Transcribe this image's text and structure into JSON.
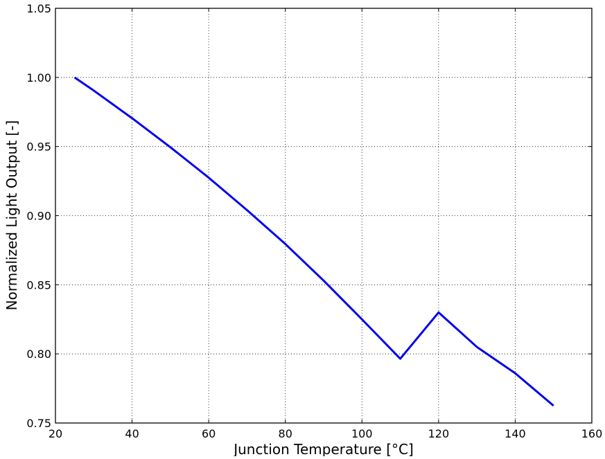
{
  "chart_data": {
    "type": "line",
    "title": "",
    "xlabel": "Junction Temperature [°C]",
    "ylabel": "Normalized Light Output [-]",
    "xlim": [
      20,
      160
    ],
    "ylim": [
      0.75,
      1.05
    ],
    "xticks": [
      20,
      40,
      60,
      80,
      100,
      120,
      140,
      160
    ],
    "xtick_labels": [
      "20",
      "40",
      "60",
      "80",
      "100",
      "120",
      "140",
      "160"
    ],
    "yticks": [
      0.75,
      0.8,
      0.85,
      0.9,
      0.95,
      1.0,
      1.05
    ],
    "ytick_labels": [
      "0.75",
      "0.80",
      "0.85",
      "0.90",
      "0.95",
      "1.00",
      "1.05"
    ],
    "grid": true,
    "grid_style": "dotted",
    "legend": false,
    "series": [
      {
        "color": "#0000ee",
        "x": [
          25,
          30,
          40,
          50,
          60,
          70,
          80,
          90,
          100,
          110,
          120,
          130,
          140,
          150
        ],
        "y": [
          1.0,
          0.9905,
          0.9705,
          0.9495,
          0.9275,
          0.904,
          0.8795,
          0.853,
          0.825,
          0.7965,
          0.83,
          0.805,
          0.786,
          0.7625
        ]
      }
    ]
  }
}
